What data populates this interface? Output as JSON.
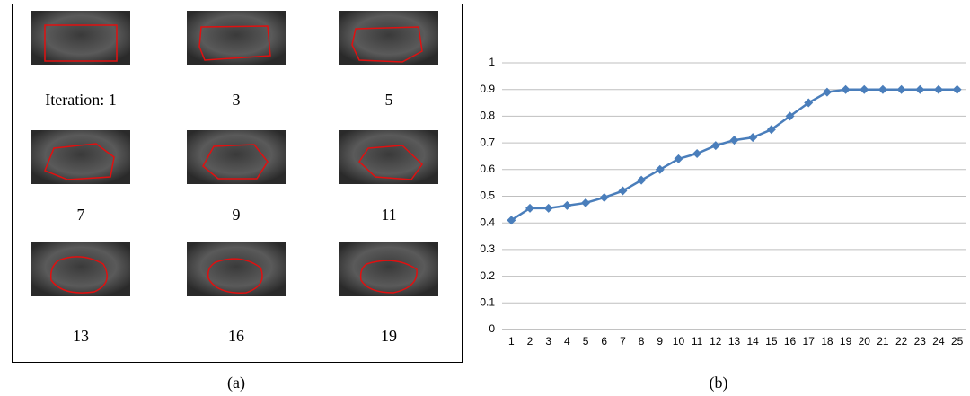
{
  "panel_a": {
    "labels": [
      "Iteration: 1",
      "3",
      "5",
      "7",
      "9",
      "11",
      "13",
      "16",
      "19"
    ],
    "caption": "(a)"
  },
  "chart_data": {
    "type": "line",
    "categories": [
      1,
      2,
      3,
      4,
      5,
      6,
      7,
      8,
      9,
      10,
      11,
      12,
      13,
      14,
      15,
      16,
      17,
      18,
      19,
      20,
      21,
      22,
      23,
      24,
      25
    ],
    "series": [
      {
        "color": "#4a7ebb",
        "values": [
          0.41,
          0.455,
          0.455,
          0.465,
          0.475,
          0.495,
          0.52,
          0.56,
          0.6,
          0.64,
          0.66,
          0.69,
          0.71,
          0.72,
          0.75,
          0.8,
          0.85,
          0.89,
          0.9,
          0.9,
          0.9,
          0.9,
          0.9,
          0.9,
          0.9
        ]
      }
    ],
    "ylim": [
      0,
      1
    ],
    "yticks": [
      0,
      0.1,
      0.2,
      0.3,
      0.4,
      0.5,
      0.6,
      0.7,
      0.8,
      0.9,
      1
    ],
    "grid": true,
    "caption": "(b)"
  }
}
